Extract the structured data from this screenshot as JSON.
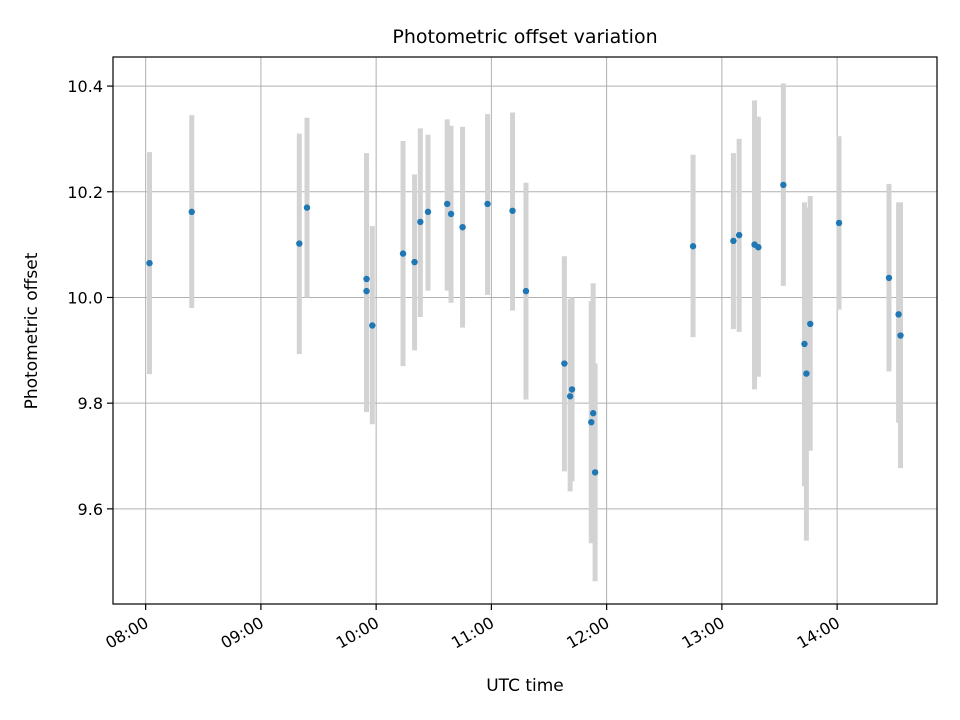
{
  "chart_data": {
    "type": "scatter",
    "title": "Photometric offset variation",
    "xlabel": "UTC time",
    "ylabel": "Photometric offset",
    "grid": true,
    "x_axis": "time",
    "xlim": [
      "07:43",
      "14:52"
    ],
    "ylim": [
      9.42,
      10.455
    ],
    "xticks": [
      "08:00",
      "09:00",
      "10:00",
      "11:00",
      "12:00",
      "13:00",
      "14:00"
    ],
    "yticks": [
      "9.6",
      "9.8",
      "10.0",
      "10.2",
      "10.4"
    ],
    "colors": {
      "marker": "#1f77b4",
      "errorbar": "#d3d3d3",
      "grid": "#b0b0b0"
    },
    "points": [
      {
        "x": "08:02",
        "y": 10.065,
        "yerr": [
          9.855,
          10.275
        ]
      },
      {
        "x": "08:24",
        "y": 10.162,
        "yerr": [
          9.98,
          10.345
        ]
      },
      {
        "x": "09:20",
        "y": 10.102,
        "yerr": [
          9.893,
          10.31
        ]
      },
      {
        "x": "09:24",
        "y": 10.17,
        "yerr": [
          10.0,
          10.34
        ]
      },
      {
        "x": "09:55",
        "y": 10.012,
        "yerr": [
          9.783,
          10.243
        ]
      },
      {
        "x": "09:55",
        "y": 10.035,
        "yerr": [
          9.81,
          10.273
        ]
      },
      {
        "x": "09:58",
        "y": 9.947,
        "yerr": [
          9.76,
          10.135
        ]
      },
      {
        "x": "10:14",
        "y": 10.083,
        "yerr": [
          9.87,
          10.296
        ]
      },
      {
        "x": "10:20",
        "y": 10.067,
        "yerr": [
          9.9,
          10.233
        ]
      },
      {
        "x": "10:23",
        "y": 10.143,
        "yerr": [
          9.963,
          10.32
        ]
      },
      {
        "x": "10:27",
        "y": 10.162,
        "yerr": [
          10.013,
          10.308
        ]
      },
      {
        "x": "10:37",
        "y": 10.177,
        "yerr": [
          10.013,
          10.337
        ]
      },
      {
        "x": "10:39",
        "y": 10.158,
        "yerr": [
          9.99,
          10.325
        ]
      },
      {
        "x": "10:45",
        "y": 10.133,
        "yerr": [
          9.943,
          10.323
        ]
      },
      {
        "x": "10:58",
        "y": 10.177,
        "yerr": [
          10.005,
          10.347
        ]
      },
      {
        "x": "11:11",
        "y": 10.164,
        "yerr": [
          9.975,
          10.35
        ]
      },
      {
        "x": "11:18",
        "y": 10.012,
        "yerr": [
          9.807,
          10.217
        ]
      },
      {
        "x": "11:38",
        "y": 9.875,
        "yerr": [
          9.671,
          10.078
        ]
      },
      {
        "x": "11:41",
        "y": 9.813,
        "yerr": [
          9.633,
          9.997
        ]
      },
      {
        "x": "11:42",
        "y": 9.826,
        "yerr": [
          9.652,
          10.0
        ]
      },
      {
        "x": "11:52",
        "y": 9.764,
        "yerr": [
          9.535,
          9.993
        ]
      },
      {
        "x": "11:53",
        "y": 9.781,
        "yerr": [
          9.55,
          10.027
        ]
      },
      {
        "x": "11:54",
        "y": 9.669,
        "yerr": [
          9.463,
          9.875
        ]
      },
      {
        "x": "12:45",
        "y": 10.097,
        "yerr": [
          9.925,
          10.27
        ]
      },
      {
        "x": "13:06",
        "y": 10.107,
        "yerr": [
          9.94,
          10.273
        ]
      },
      {
        "x": "13:09",
        "y": 10.118,
        "yerr": [
          9.935,
          10.3
        ]
      },
      {
        "x": "13:17",
        "y": 10.1,
        "yerr": [
          9.826,
          10.373
        ]
      },
      {
        "x": "13:19",
        "y": 10.095,
        "yerr": [
          9.85,
          10.342
        ]
      },
      {
        "x": "13:32",
        "y": 10.213,
        "yerr": [
          10.022,
          10.405
        ]
      },
      {
        "x": "13:43",
        "y": 9.912,
        "yerr": [
          9.643,
          10.18
        ]
      },
      {
        "x": "13:44",
        "y": 9.856,
        "yerr": [
          9.54,
          10.17
        ]
      },
      {
        "x": "13:46",
        "y": 9.95,
        "yerr": [
          9.71,
          10.192
        ]
      },
      {
        "x": "14:01",
        "y": 10.141,
        "yerr": [
          9.977,
          10.305
        ]
      },
      {
        "x": "14:27",
        "y": 10.037,
        "yerr": [
          9.86,
          10.215
        ]
      },
      {
        "x": "14:32",
        "y": 9.968,
        "yerr": [
          9.763,
          10.18
        ]
      },
      {
        "x": "14:33",
        "y": 9.928,
        "yerr": [
          9.677,
          10.18
        ]
      }
    ]
  }
}
